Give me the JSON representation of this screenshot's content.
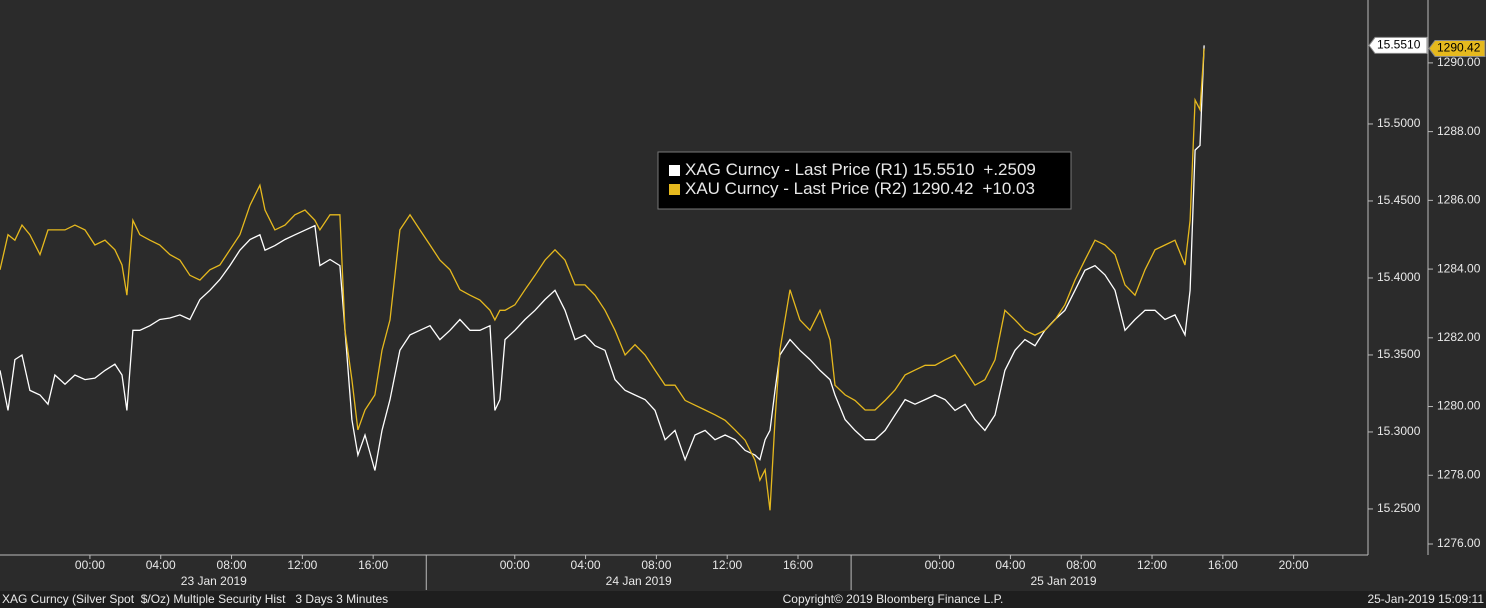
{
  "chart_data": {
    "type": "line",
    "x": [
      -5.08,
      -4.63,
      -4.24,
      -3.84,
      -3.39,
      -2.82,
      -2.37,
      -1.98,
      -1.41,
      -0.85,
      -0.28,
      0.28,
      0.85,
      1.41,
      1.81,
      2.09,
      2.43,
      2.82,
      3.39,
      3.95,
      4.52,
      5.08,
      5.65,
      6.21,
      6.78,
      7.34,
      7.91,
      8.47,
      9.04,
      9.6,
      9.89,
      10.45,
      11.02,
      11.58,
      12.15,
      12.71,
      12.99,
      13.56,
      14.12,
      14.41,
      14.8,
      15.14,
      15.54,
      16.1,
      16.5,
      16.95,
      17.51,
      18.08,
      18.64,
      19.21,
      19.77,
      20.34,
      20.9,
      21.47,
      22.03,
      22.6,
      22.88,
      23.16,
      23.45,
      24.01,
      24.58,
      25.14,
      25.71,
      26.27,
      26.84,
      27.4,
      27.97,
      28.53,
      29.1,
      29.66,
      30.23,
      30.79,
      31.36,
      31.92,
      32.49,
      33.05,
      33.62,
      34.18,
      34.75,
      35.31,
      35.88,
      36.44,
      37.01,
      37.57,
      37.85,
      38.14,
      38.42,
      38.7,
      38.98,
      39.55,
      40.11,
      40.68,
      41.24,
      41.81,
      42.09,
      42.66,
      43.22,
      43.79,
      44.35,
      44.92,
      45.48,
      46.05,
      46.61,
      47.18,
      47.74,
      48.31,
      48.87,
      49.44,
      50.0,
      50.56,
      51.13,
      51.69,
      52.26,
      52.82,
      53.39,
      53.95,
      54.52,
      55.08,
      55.65,
      56.21,
      56.78,
      57.34,
      57.91,
      58.47,
      59.04,
      59.6,
      60.17,
      60.73,
      61.3,
      61.86,
      62.15,
      62.43,
      62.71,
      62.94
    ],
    "series": [
      {
        "name": "XAG Curncy - Last Price (R1)",
        "color": "#ffffff",
        "axis": "y",
        "last_label": "15.5510",
        "change_label": "+.2509",
        "values": [
          15.34,
          15.314,
          15.347,
          15.35,
          15.327,
          15.324,
          15.318,
          15.337,
          15.331,
          15.337,
          15.334,
          15.335,
          15.34,
          15.344,
          15.337,
          15.314,
          15.366,
          15.366,
          15.369,
          15.373,
          15.374,
          15.376,
          15.373,
          15.386,
          15.392,
          15.399,
          15.408,
          15.418,
          15.425,
          15.428,
          15.418,
          15.421,
          15.425,
          15.428,
          15.431,
          15.434,
          15.408,
          15.412,
          15.408,
          15.366,
          15.308,
          15.285,
          15.298,
          15.275,
          15.301,
          15.321,
          15.353,
          15.363,
          15.366,
          15.369,
          15.36,
          15.366,
          15.373,
          15.366,
          15.366,
          15.369,
          15.314,
          15.321,
          15.36,
          15.366,
          15.373,
          15.379,
          15.386,
          15.392,
          15.379,
          15.36,
          15.363,
          15.356,
          15.353,
          15.334,
          15.327,
          15.324,
          15.321,
          15.314,
          15.295,
          15.301,
          15.282,
          15.298,
          15.301,
          15.295,
          15.298,
          15.295,
          15.288,
          15.285,
          15.282,
          15.295,
          15.301,
          15.327,
          15.35,
          15.36,
          15.353,
          15.347,
          15.34,
          15.334,
          15.324,
          15.308,
          15.301,
          15.295,
          15.295,
          15.301,
          15.311,
          15.321,
          15.318,
          15.321,
          15.324,
          15.321,
          15.314,
          15.318,
          15.308,
          15.301,
          15.311,
          15.34,
          15.353,
          15.36,
          15.356,
          15.366,
          15.373,
          15.379,
          15.392,
          15.405,
          15.408,
          15.402,
          15.392,
          15.366,
          15.373,
          15.379,
          15.379,
          15.373,
          15.376,
          15.363,
          15.392,
          15.483,
          15.486,
          15.551
        ]
      },
      {
        "name": "XAU Curncy - Last Price (R2)",
        "color": "#e6b91e",
        "axis": "y2",
        "last_label": "1290.42",
        "change_label": "+10.03",
        "values": [
          1283.98,
          1285.0,
          1284.84,
          1285.28,
          1285.0,
          1284.42,
          1285.14,
          1285.14,
          1285.14,
          1285.28,
          1285.14,
          1284.7,
          1284.84,
          1284.56,
          1284.12,
          1283.24,
          1285.42,
          1285.0,
          1284.84,
          1284.7,
          1284.42,
          1284.26,
          1283.82,
          1283.68,
          1283.98,
          1284.12,
          1284.56,
          1285.0,
          1285.86,
          1286.44,
          1285.72,
          1285.14,
          1285.28,
          1285.58,
          1285.72,
          1285.42,
          1285.14,
          1285.58,
          1285.58,
          1282.22,
          1280.78,
          1279.32,
          1279.9,
          1280.34,
          1281.64,
          1282.52,
          1285.14,
          1285.58,
          1285.14,
          1284.7,
          1284.26,
          1283.98,
          1283.4,
          1283.24,
          1283.1,
          1282.8,
          1282.52,
          1282.8,
          1282.8,
          1282.96,
          1283.4,
          1283.82,
          1284.26,
          1284.56,
          1284.26,
          1283.54,
          1283.54,
          1283.24,
          1282.8,
          1282.22,
          1281.5,
          1281.8,
          1281.5,
          1281.06,
          1280.62,
          1280.62,
          1280.18,
          1280.04,
          1279.9,
          1279.76,
          1279.6,
          1279.32,
          1279.02,
          1278.44,
          1277.86,
          1278.16,
          1276.98,
          1279.6,
          1281.64,
          1283.4,
          1282.52,
          1282.22,
          1282.8,
          1281.94,
          1280.62,
          1280.34,
          1280.18,
          1279.9,
          1279.9,
          1280.18,
          1280.48,
          1280.92,
          1281.06,
          1281.2,
          1281.2,
          1281.36,
          1281.5,
          1281.06,
          1280.62,
          1280.78,
          1281.36,
          1282.8,
          1282.52,
          1282.22,
          1282.08,
          1282.22,
          1282.52,
          1282.96,
          1283.68,
          1284.26,
          1284.84,
          1284.7,
          1284.42,
          1283.54,
          1283.24,
          1283.98,
          1284.56,
          1284.7,
          1284.84,
          1284.12,
          1285.42,
          1288.92,
          1288.64,
          1290.42
        ]
      }
    ],
    "xlim": [
      -5.08,
      72.2
    ],
    "xticks": [
      {
        "value": 0,
        "label": "00:00"
      },
      {
        "value": 4,
        "label": "04:00"
      },
      {
        "value": 8,
        "label": "08:00"
      },
      {
        "value": 12,
        "label": "12:00"
      },
      {
        "value": 16,
        "label": "16:00"
      },
      {
        "value": 24,
        "label": "00:00"
      },
      {
        "value": 28,
        "label": "04:00"
      },
      {
        "value": 32,
        "label": "08:00"
      },
      {
        "value": 36,
        "label": "12:00"
      },
      {
        "value": 40,
        "label": "16:00"
      },
      {
        "value": 48,
        "label": "00:00"
      },
      {
        "value": 52,
        "label": "04:00"
      },
      {
        "value": 56,
        "label": "08:00"
      },
      {
        "value": 60,
        "label": "12:00"
      },
      {
        "value": 64,
        "label": "16:00"
      },
      {
        "value": 68,
        "label": "20:00"
      }
    ],
    "date_labels": [
      {
        "value": 7,
        "label": "23 Jan 2019"
      },
      {
        "value": 31,
        "label": "24 Jan 2019"
      },
      {
        "value": 55,
        "label": "25 Jan 2019"
      }
    ],
    "ylim": [
      15.2201,
      15.5805
    ],
    "yticks": [
      {
        "value": 15.25,
        "label": "15.2500"
      },
      {
        "value": 15.3,
        "label": "15.3000"
      },
      {
        "value": 15.35,
        "label": "15.3500"
      },
      {
        "value": 15.4,
        "label": "15.4000"
      },
      {
        "value": 15.45,
        "label": "15.4500"
      },
      {
        "value": 15.5,
        "label": "15.5000"
      }
    ],
    "y2lim": [
      1275.68,
      1291.83
    ],
    "y2ticks": [
      {
        "value": 1276,
        "label": "1276.00"
      },
      {
        "value": 1278,
        "label": "1278.00"
      },
      {
        "value": 1280,
        "label": "1280.00"
      },
      {
        "value": 1282,
        "label": "1282.00"
      },
      {
        "value": 1284,
        "label": "1284.00"
      },
      {
        "value": 1286,
        "label": "1286.00"
      },
      {
        "value": 1288,
        "label": "1288.00"
      },
      {
        "value": 1290,
        "label": "1290.00"
      }
    ],
    "footer": {
      "left": "XAG Curncy (Silver Spot  $/Oz) Multiple Security Hist   3 Days 3 Minutes",
      "center": "Copyright© 2019 Bloomberg Finance L.P.",
      "right": "25-Jan-2019 15:09:11"
    }
  }
}
